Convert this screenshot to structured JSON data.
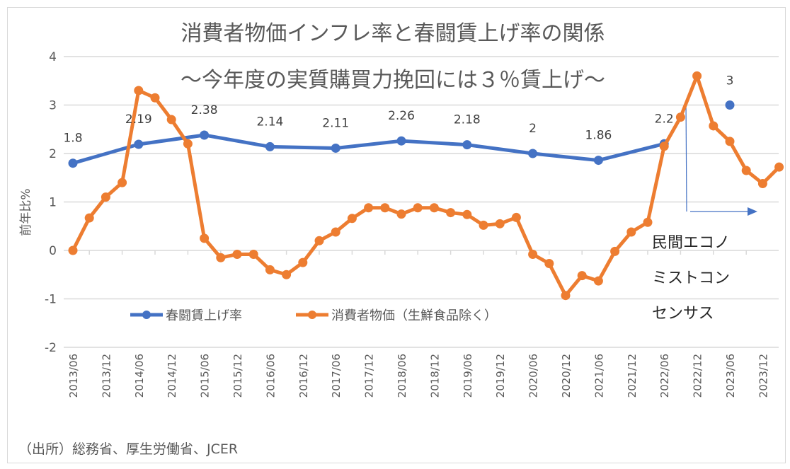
{
  "chart_data": {
    "type": "line",
    "title": "消費者物価インフレ率と春闘賃上げ率の関係",
    "subtitle": "～今年度の実質購買力挽回には３％賃上げ～",
    "xlabel": "",
    "ylabel": "前年比%",
    "ylim": [
      -2,
      4
    ],
    "yticks": [
      "4",
      "3",
      "2",
      "1",
      "0",
      "-1",
      "-2"
    ],
    "ytick_values": [
      4,
      3,
      2,
      1,
      0,
      -1,
      -2
    ],
    "grid": true,
    "legend_position": "bottom-center-inside",
    "x_tick_labels": [
      "2013/06",
      "2013/12",
      "2014/06",
      "2014/12",
      "2015/06",
      "2015/12",
      "2016/06",
      "2016/12",
      "2017/06",
      "2017/12",
      "2018/06",
      "2018/12",
      "2019/06",
      "2019/12",
      "2020/06",
      "2020/12",
      "2021/06",
      "2021/12",
      "2022/06",
      "2022/12",
      "2023/06",
      "2023/12"
    ],
    "series": [
      {
        "name": "春闘賃上げ率",
        "color": "#4472c4",
        "x": [
          "2013/06",
          "2014/06",
          "2015/06",
          "2016/06",
          "2017/06",
          "2018/06",
          "2019/06",
          "2020/06",
          "2021/06",
          "2022/06"
        ],
        "values": [
          1.8,
          2.19,
          2.38,
          2.14,
          2.11,
          2.26,
          2.18,
          2.0,
          1.86,
          2.2
        ],
        "labels": [
          "1.8",
          "2.19",
          "2.38",
          "2.14",
          "2.11",
          "2.26",
          "2.18",
          "2",
          "1.86",
          "2.2"
        ]
      },
      {
        "name": "春闘賃上げ率（民間エコノミストコンセンサス）",
        "color": "#4472c4",
        "x": [
          "2023/06"
        ],
        "values": [
          3.0
        ],
        "labels": [
          "3"
        ],
        "standalone_point": true
      },
      {
        "name": "消費者物価（生鮮食品除く）",
        "color": "#ed7d31",
        "x": [
          "2013/06",
          "2013/09",
          "2013/12",
          "2014/03",
          "2014/06",
          "2014/09",
          "2014/12",
          "2015/03",
          "2015/06",
          "2015/09",
          "2015/12",
          "2016/03",
          "2016/06",
          "2016/09",
          "2016/12",
          "2017/03",
          "2017/06",
          "2017/09",
          "2017/12",
          "2018/03",
          "2018/06",
          "2018/09",
          "2018/12",
          "2019/03",
          "2019/06",
          "2019/09",
          "2019/12",
          "2020/03",
          "2020/06",
          "2020/09",
          "2020/12",
          "2021/03",
          "2021/06",
          "2021/09",
          "2021/12",
          "2022/03",
          "2022/06",
          "2022/09",
          "2022/12",
          "2023/03",
          "2023/06",
          "2023/09",
          "2023/12",
          "2024/03"
        ],
        "values": [
          0.0,
          0.67,
          1.1,
          1.4,
          3.3,
          3.15,
          2.7,
          2.2,
          0.25,
          -0.15,
          -0.08,
          -0.08,
          -0.4,
          -0.5,
          -0.25,
          0.2,
          0.38,
          0.66,
          0.88,
          0.88,
          0.75,
          0.88,
          0.88,
          0.78,
          0.74,
          0.52,
          0.55,
          0.68,
          -0.08,
          -0.27,
          -0.93,
          -0.52,
          -0.63,
          -0.02,
          0.38,
          0.58,
          2.15,
          2.75,
          3.6,
          2.57,
          2.25,
          1.65,
          1.38,
          1.72
        ]
      }
    ],
    "annotations": {
      "forecast_label_lines": [
        "民間エコノ",
        "ミストコン",
        "センサス"
      ],
      "forecast_arrow": "right-arrow from 2022/09 onward"
    },
    "source": "（出所）総務省、厚生労働省、JCER"
  }
}
